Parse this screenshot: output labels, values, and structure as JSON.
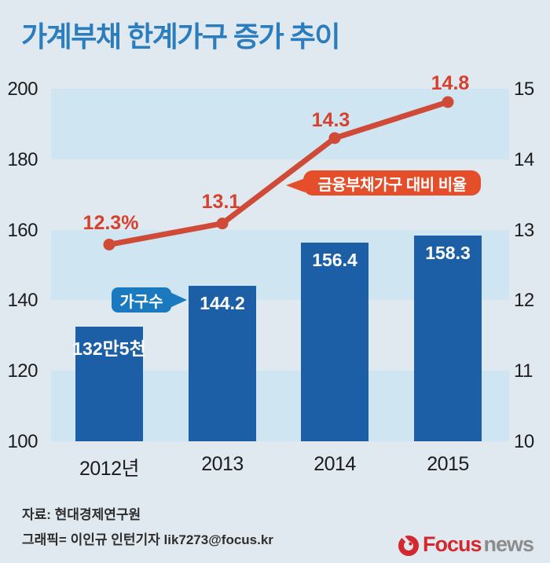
{
  "title": "가계부채 한계가구 증가 추이",
  "colors": {
    "background": "#e0e9ef",
    "grid_band": "#cfe5f1",
    "bar": "#1d5fa6",
    "bar_label": "#ffffff",
    "line": "#cf4a37",
    "line_label": "#d8402e",
    "ratio_badge": "#e44e2b",
    "households_badge": "#1b79c0",
    "title": "#2b7dbe",
    "axis_text": "#1c1c1e",
    "footer_text": "#2e2e2e",
    "logo_red": "#d4282e",
    "logo_gray": "#8c8c8c"
  },
  "chart_data": {
    "type": "bar+line combo",
    "title": "가계부채 한계가구 증가 추이",
    "categories": [
      "2012년",
      "2013",
      "2014",
      "2015"
    ],
    "series": [
      {
        "name": "가구수",
        "type": "bar",
        "axis": "left",
        "values": [
          132.5,
          144.2,
          156.4,
          158.3
        ],
        "value_labels": [
          "132만5천",
          "144.2",
          "156.4",
          "158.3"
        ]
      },
      {
        "name": "금융부채가구 대비 비율",
        "type": "line",
        "axis": "right",
        "values": [
          12.3,
          13.1,
          14.3,
          14.8
        ],
        "value_labels": [
          "12.3%",
          "13.1",
          "14.3",
          "14.8"
        ]
      }
    ],
    "left_axis": {
      "min": 100,
      "max": 200,
      "ticks": [
        200,
        180,
        160,
        140,
        120,
        100
      ]
    },
    "right_axis": {
      "min": 10,
      "max": 15,
      "ticks": [
        15,
        14,
        13,
        12,
        11,
        10
      ]
    },
    "shaded_bands": [
      [
        180,
        200
      ],
      [
        140,
        160
      ],
      [
        100,
        120
      ]
    ],
    "grid": "alternating horizontal bands, no axis lines",
    "legend_position": "inline callout badges",
    "annotations": [
      {
        "text": "가구수",
        "points_to": "2013 bar"
      },
      {
        "text": "금융부채가구 대비 비율",
        "points_to": "ratio line"
      }
    ]
  },
  "footer": {
    "source": "자료: 현대경제연구원",
    "credit": "그래픽= 이인규 인턴기자  lik7273@focus.kr",
    "logo": {
      "focus": "Focus",
      "news": "news"
    }
  }
}
